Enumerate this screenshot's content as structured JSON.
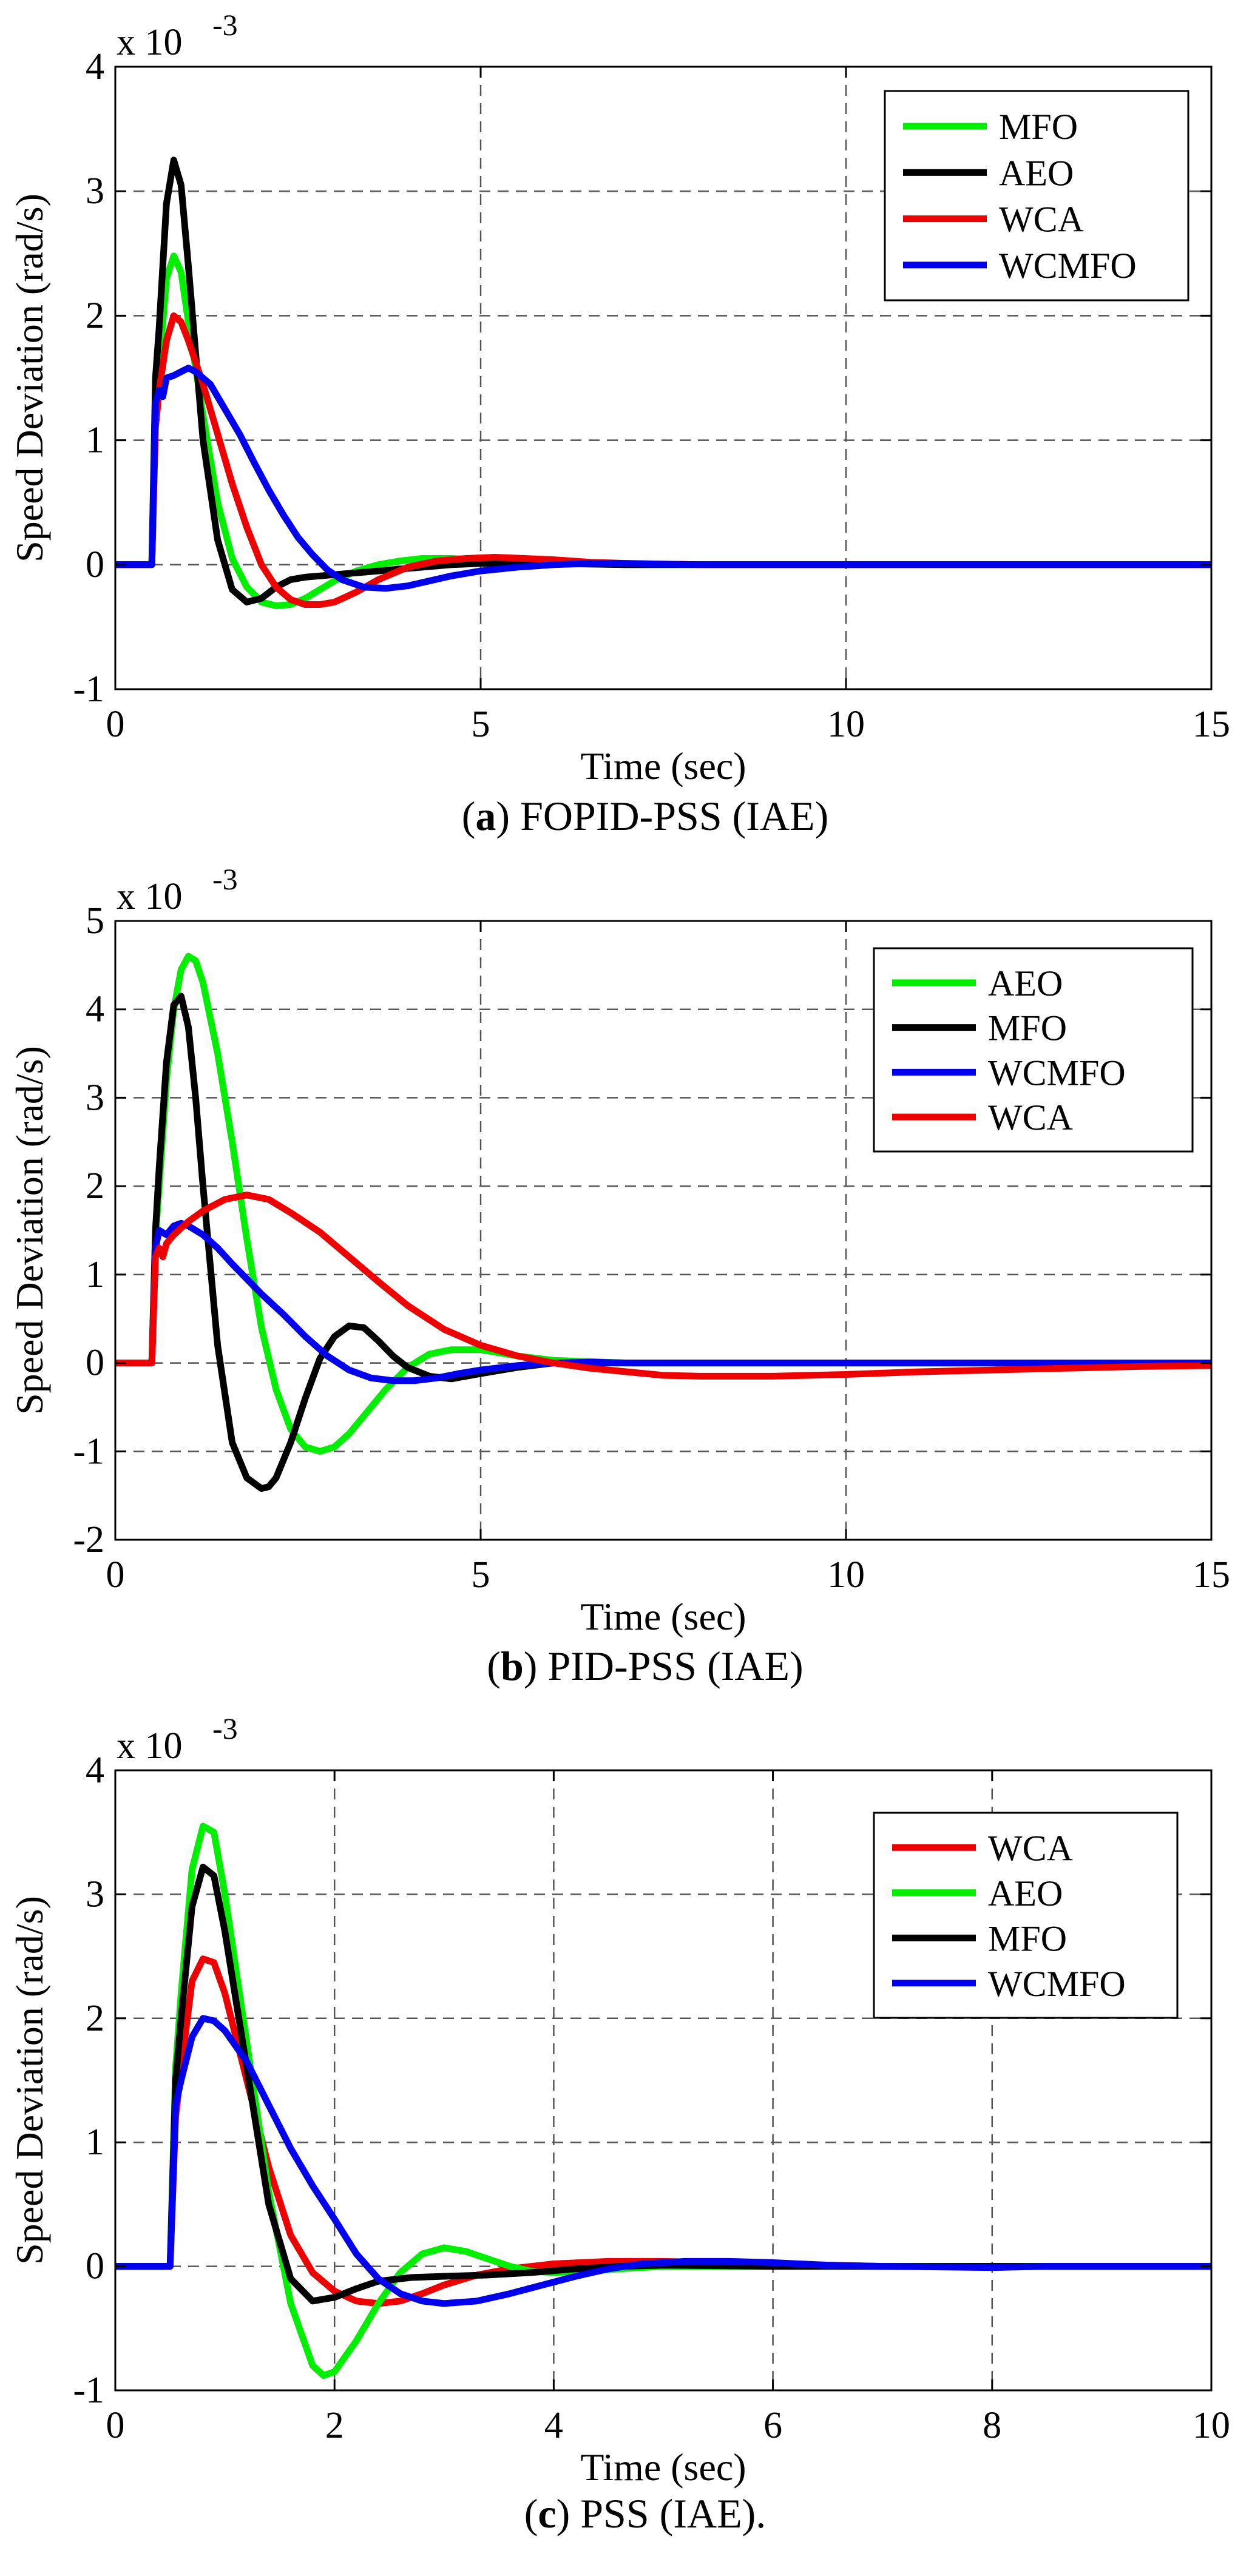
{
  "chart_data": [
    {
      "type": "line",
      "title": "",
      "caption_label": "a",
      "caption_text": " FOPID-PSS (IAE)",
      "xlabel": "Time (sec)",
      "ylabel": "Speed Deviation (rad/s)",
      "exponent_label": "x 10",
      "exponent_power": "-3",
      "xlim": [
        0,
        15
      ],
      "ylim": [
        -1,
        4
      ],
      "xticks": [
        0,
        5,
        10,
        15
      ],
      "yticks": [
        -1,
        0,
        1,
        2,
        3,
        4
      ],
      "grid": true,
      "legend_position": "top-right",
      "series": [
        {
          "name": "MFO",
          "color": "#00ee00",
          "x": [
            0,
            0.5,
            0.55,
            0.6,
            0.7,
            0.8,
            0.9,
            1.0,
            1.2,
            1.4,
            1.6,
            1.8,
            2.0,
            2.2,
            2.4,
            2.6,
            2.8,
            3.0,
            3.3,
            3.6,
            3.9,
            4.2,
            4.6,
            5.0,
            5.5,
            6.0,
            7.0,
            8.0,
            10.0,
            15.0
          ],
          "y": [
            0,
            0,
            1.3,
            1.6,
            2.3,
            2.48,
            2.35,
            1.95,
            1.2,
            0.5,
            0.05,
            -0.18,
            -0.3,
            -0.33,
            -0.32,
            -0.27,
            -0.2,
            -0.13,
            -0.05,
            0.0,
            0.03,
            0.05,
            0.05,
            0.04,
            0.02,
            0.01,
            0.0,
            0.0,
            0.0,
            0.0
          ]
        },
        {
          "name": "AEO",
          "color": "#000000",
          "x": [
            0,
            0.5,
            0.55,
            0.6,
            0.7,
            0.8,
            0.9,
            1.0,
            1.1,
            1.2,
            1.4,
            1.6,
            1.8,
            2.0,
            2.2,
            2.4,
            2.6,
            2.8,
            3.0,
            3.4,
            3.8,
            4.2,
            4.6,
            5.0,
            6.0,
            7.0,
            10.0,
            15.0
          ],
          "y": [
            0,
            0,
            1.5,
            1.9,
            2.9,
            3.25,
            3.05,
            2.4,
            1.7,
            1.0,
            0.2,
            -0.2,
            -0.3,
            -0.27,
            -0.18,
            -0.12,
            -0.1,
            -0.09,
            -0.08,
            -0.06,
            -0.04,
            -0.02,
            0.0,
            0.01,
            0.01,
            0.0,
            0.0,
            0.0
          ]
        },
        {
          "name": "WCA",
          "color": "#ee0000",
          "x": [
            0,
            0.5,
            0.55,
            0.6,
            0.7,
            0.8,
            0.9,
            1.0,
            1.2,
            1.4,
            1.6,
            1.8,
            2.0,
            2.2,
            2.4,
            2.6,
            2.8,
            3.0,
            3.3,
            3.6,
            4.0,
            4.4,
            4.8,
            5.2,
            5.6,
            6.0,
            6.5,
            7.0,
            8.0,
            10.0,
            15.0
          ],
          "y": [
            0,
            0,
            1.1,
            1.4,
            1.8,
            2.0,
            1.95,
            1.8,
            1.45,
            1.05,
            0.65,
            0.3,
            0.0,
            -0.18,
            -0.28,
            -0.32,
            -0.32,
            -0.3,
            -0.22,
            -0.12,
            -0.02,
            0.03,
            0.05,
            0.06,
            0.05,
            0.04,
            0.02,
            0.01,
            0.0,
            0.0,
            0.0
          ]
        },
        {
          "name": "WCMFO",
          "color": "#0000ee",
          "x": [
            0,
            0.5,
            0.55,
            0.6,
            0.65,
            0.7,
            0.8,
            0.9,
            1.0,
            1.1,
            1.3,
            1.5,
            1.7,
            1.9,
            2.1,
            2.3,
            2.5,
            2.7,
            2.9,
            3.1,
            3.4,
            3.7,
            4.0,
            4.3,
            4.6,
            5.0,
            5.5,
            6.0,
            6.5,
            7.0,
            8.0,
            10.0,
            12.0,
            15.0
          ],
          "y": [
            0,
            0,
            1.3,
            1.4,
            1.35,
            1.5,
            1.52,
            1.55,
            1.58,
            1.55,
            1.45,
            1.25,
            1.05,
            0.82,
            0.6,
            0.4,
            0.22,
            0.08,
            -0.04,
            -0.12,
            -0.18,
            -0.19,
            -0.17,
            -0.13,
            -0.09,
            -0.05,
            -0.02,
            0.0,
            0.01,
            0.01,
            0.0,
            0.0,
            0.0,
            0.0
          ]
        }
      ]
    },
    {
      "type": "line",
      "title": "",
      "caption_label": "b",
      "caption_text": " PID-PSS (IAE)",
      "xlabel": "Time (sec)",
      "ylabel": "Speed Deviation (rad/s)",
      "exponent_label": "x 10",
      "exponent_power": "-3",
      "xlim": [
        0,
        15
      ],
      "ylim": [
        -2,
        5
      ],
      "xticks": [
        0,
        5,
        10,
        15
      ],
      "yticks": [
        -2,
        -1,
        0,
        1,
        2,
        3,
        4,
        5
      ],
      "grid": true,
      "legend_position": "top-right",
      "series": [
        {
          "name": "AEO",
          "color": "#00ee00",
          "x": [
            0,
            0.5,
            0.55,
            0.6,
            0.7,
            0.8,
            0.9,
            1.0,
            1.1,
            1.2,
            1.4,
            1.6,
            1.8,
            2.0,
            2.2,
            2.4,
            2.6,
            2.8,
            3.0,
            3.2,
            3.4,
            3.7,
            4.0,
            4.3,
            4.6,
            5.0,
            5.5,
            6.0,
            7.0,
            8.0,
            10.0,
            15.0
          ],
          "y": [
            0,
            0,
            1.4,
            2.0,
            3.2,
            4.0,
            4.45,
            4.6,
            4.55,
            4.3,
            3.5,
            2.5,
            1.4,
            0.4,
            -0.3,
            -0.75,
            -0.95,
            -1.0,
            -0.95,
            -0.8,
            -0.6,
            -0.3,
            -0.05,
            0.1,
            0.15,
            0.15,
            0.08,
            0.03,
            0.0,
            0.0,
            0.0,
            0.0
          ]
        },
        {
          "name": "MFO",
          "color": "#000000",
          "x": [
            0,
            0.5,
            0.55,
            0.6,
            0.7,
            0.8,
            0.9,
            1.0,
            1.1,
            1.2,
            1.4,
            1.6,
            1.8,
            2.0,
            2.1,
            2.2,
            2.4,
            2.6,
            2.8,
            3.0,
            3.2,
            3.4,
            3.6,
            3.8,
            4.0,
            4.3,
            4.6,
            5.0,
            5.5,
            6.0,
            7.0,
            8.0,
            10.0,
            15.0
          ],
          "y": [
            0,
            0,
            1.5,
            2.2,
            3.4,
            4.05,
            4.15,
            3.8,
            3.0,
            2.0,
            0.2,
            -0.9,
            -1.3,
            -1.42,
            -1.4,
            -1.3,
            -0.9,
            -0.4,
            0.05,
            0.3,
            0.42,
            0.4,
            0.25,
            0.08,
            -0.05,
            -0.15,
            -0.18,
            -0.12,
            -0.05,
            0.0,
            0.0,
            0.0,
            0.0,
            0.0
          ]
        },
        {
          "name": "WCMFO",
          "color": "#0000ee",
          "x": [
            0,
            0.5,
            0.55,
            0.6,
            0.7,
            0.8,
            0.9,
            1.0,
            1.2,
            1.4,
            1.6,
            1.8,
            2.0,
            2.3,
            2.6,
            2.9,
            3.2,
            3.5,
            3.8,
            4.1,
            4.4,
            4.7,
            5.0,
            5.5,
            6.0,
            6.5,
            7.0,
            8.0,
            10.0,
            15.0
          ],
          "y": [
            0,
            0,
            1.3,
            1.5,
            1.45,
            1.55,
            1.58,
            1.55,
            1.45,
            1.3,
            1.12,
            0.95,
            0.78,
            0.55,
            0.3,
            0.08,
            -0.08,
            -0.17,
            -0.2,
            -0.2,
            -0.17,
            -0.12,
            -0.08,
            -0.03,
            0.0,
            0.01,
            0.0,
            0.0,
            0.0,
            0.0
          ]
        },
        {
          "name": "WCA",
          "color": "#ee0000",
          "x": [
            0,
            0.5,
            0.55,
            0.6,
            0.65,
            0.7,
            0.8,
            1.0,
            1.2,
            1.5,
            1.8,
            2.1,
            2.4,
            2.8,
            3.2,
            3.6,
            4.0,
            4.5,
            5.0,
            5.5,
            6.0,
            6.5,
            7.0,
            7.5,
            8.0,
            9.0,
            10.0,
            11.0,
            12.0,
            13.0,
            14.0,
            15.0
          ],
          "y": [
            0,
            0,
            1.2,
            1.3,
            1.2,
            1.35,
            1.45,
            1.6,
            1.72,
            1.85,
            1.9,
            1.85,
            1.7,
            1.48,
            1.2,
            0.92,
            0.65,
            0.38,
            0.2,
            0.08,
            0.0,
            -0.06,
            -0.1,
            -0.14,
            -0.15,
            -0.15,
            -0.13,
            -0.1,
            -0.08,
            -0.06,
            -0.04,
            -0.03
          ]
        }
      ]
    },
    {
      "type": "line",
      "title": "",
      "caption_label": "c",
      "caption_text": " PSS (IAE).",
      "xlabel": "Time (sec)",
      "ylabel": "Speed Deviation (rad/s)",
      "exponent_label": "x 10",
      "exponent_power": "-3",
      "xlim": [
        0,
        10
      ],
      "ylim": [
        -1,
        4
      ],
      "xticks": [
        0,
        2,
        4,
        6,
        8,
        10
      ],
      "yticks": [
        -1,
        0,
        1,
        2,
        3,
        4
      ],
      "grid": true,
      "legend_position": "top-right",
      "series": [
        {
          "name": "WCA",
          "color": "#ee0000",
          "x": [
            0,
            0.5,
            0.55,
            0.6,
            0.7,
            0.8,
            0.9,
            1.0,
            1.2,
            1.4,
            1.6,
            1.8,
            2.0,
            2.2,
            2.4,
            2.6,
            2.8,
            3.0,
            3.3,
            3.6,
            4.0,
            4.5,
            5.0,
            5.5,
            6.0,
            7.0,
            8.0,
            10.0
          ],
          "y": [
            0,
            0,
            1.2,
            1.6,
            2.3,
            2.48,
            2.45,
            2.2,
            1.5,
            0.8,
            0.25,
            -0.05,
            -0.2,
            -0.28,
            -0.3,
            -0.28,
            -0.22,
            -0.15,
            -0.07,
            -0.02,
            0.02,
            0.04,
            0.04,
            0.03,
            0.02,
            0.0,
            0.0,
            0.0
          ]
        },
        {
          "name": "AEO",
          "color": "#00ee00",
          "x": [
            0,
            0.5,
            0.55,
            0.6,
            0.7,
            0.8,
            0.9,
            1.0,
            1.2,
            1.4,
            1.6,
            1.8,
            1.9,
            2.0,
            2.2,
            2.4,
            2.6,
            2.8,
            3.0,
            3.2,
            3.4,
            3.6,
            3.8,
            4.0,
            4.3,
            4.6,
            5.0,
            6.0,
            7.0,
            8.0,
            10.0
          ],
          "y": [
            0,
            0,
            1.6,
            2.2,
            3.2,
            3.55,
            3.5,
            3.0,
            1.8,
            0.6,
            -0.3,
            -0.8,
            -0.88,
            -0.85,
            -0.6,
            -0.3,
            -0.05,
            0.1,
            0.15,
            0.12,
            0.06,
            0.0,
            -0.04,
            -0.05,
            -0.04,
            -0.02,
            0.0,
            0.0,
            0.0,
            0.0,
            0.0
          ]
        },
        {
          "name": "MFO",
          "color": "#000000",
          "x": [
            0,
            0.5,
            0.55,
            0.6,
            0.7,
            0.8,
            0.9,
            1.0,
            1.2,
            1.4,
            1.6,
            1.8,
            2.0,
            2.2,
            2.4,
            2.7,
            3.0,
            3.4,
            3.8,
            4.2,
            4.6,
            5.0,
            6.0,
            7.0,
            10.0
          ],
          "y": [
            0,
            0,
            1.5,
            2.0,
            2.9,
            3.22,
            3.15,
            2.7,
            1.6,
            0.5,
            -0.1,
            -0.28,
            -0.25,
            -0.18,
            -0.12,
            -0.09,
            -0.08,
            -0.07,
            -0.05,
            -0.02,
            0.0,
            0.01,
            0.0,
            0.0,
            0.0
          ]
        },
        {
          "name": "WCMFO",
          "color": "#0000ee",
          "x": [
            0,
            0.5,
            0.55,
            0.6,
            0.7,
            0.8,
            0.9,
            1.0,
            1.2,
            1.4,
            1.6,
            1.8,
            2.0,
            2.2,
            2.4,
            2.6,
            2.8,
            3.0,
            3.3,
            3.6,
            3.9,
            4.2,
            4.5,
            4.8,
            5.2,
            5.6,
            6.0,
            6.5,
            7.0,
            8.0,
            8.5,
            10.0
          ],
          "y": [
            0,
            0,
            1.3,
            1.5,
            1.85,
            2.0,
            1.98,
            1.9,
            1.65,
            1.3,
            0.95,
            0.65,
            0.38,
            0.1,
            -0.1,
            -0.22,
            -0.28,
            -0.3,
            -0.28,
            -0.22,
            -0.15,
            -0.08,
            -0.02,
            0.02,
            0.04,
            0.04,
            0.03,
            0.01,
            0.0,
            -0.01,
            0.0,
            0.0
          ]
        }
      ]
    }
  ]
}
